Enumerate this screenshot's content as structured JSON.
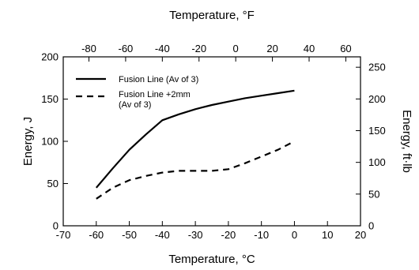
{
  "chart_data": {
    "type": "line",
    "xlabel": "Temperature, °C",
    "ylabel": "Energy, J",
    "x2label": "Temperature, °F",
    "y2label": "Energy, ft·lb",
    "xlim": [
      -70,
      20
    ],
    "ylim": [
      0,
      200
    ],
    "x2lim": [
      -94,
      68
    ],
    "y2lim": [
      0,
      266.4
    ],
    "x_ticks": [
      -70,
      -60,
      -50,
      -40,
      -30,
      -20,
      -10,
      0,
      10,
      20
    ],
    "y_ticks": [
      0,
      50,
      100,
      150,
      200
    ],
    "x2_ticks": [
      -80,
      -60,
      -40,
      -20,
      0,
      20,
      40,
      60
    ],
    "y2_ticks": [
      0,
      50,
      100,
      150,
      200,
      250
    ],
    "x_tick_labels": [
      "-70",
      "-60",
      "-50",
      "-40",
      "-30",
      "-20",
      "-10",
      "0",
      "10",
      "20"
    ],
    "y_tick_labels": [
      "0",
      "50",
      "100",
      "150",
      "200"
    ],
    "x2_tick_labels": [
      "-80",
      "-60",
      "-40",
      "-20",
      "0",
      "20",
      "40",
      "60"
    ],
    "y2_tick_labels": [
      "0",
      "50",
      "100",
      "150",
      "200",
      "250"
    ],
    "legend_placement": "top-left",
    "series": [
      {
        "name": "Fusion Line (Av of 3)",
        "style": "solid",
        "x": [
          -60,
          -55,
          -50,
          -45,
          -40,
          -35,
          -30,
          -25,
          -20,
          -15,
          -10,
          -5,
          0
        ],
        "values": [
          45,
          68,
          90,
          108,
          125,
          132,
          138,
          143,
          147,
          151,
          154,
          157,
          160
        ]
      },
      {
        "name": "Fusion Line +2mm (Av of 3)",
        "name_lines": [
          "Fusion Line +2mm",
          "(Av of 3)"
        ],
        "style": "dashed",
        "x": [
          -60,
          -55,
          -50,
          -45,
          -40,
          -35,
          -30,
          -25,
          -20,
          -15,
          -10,
          -5,
          0
        ],
        "values": [
          32,
          45,
          54,
          59,
          63,
          65,
          65,
          65,
          67,
          74,
          82,
          90,
          100
        ]
      }
    ]
  }
}
